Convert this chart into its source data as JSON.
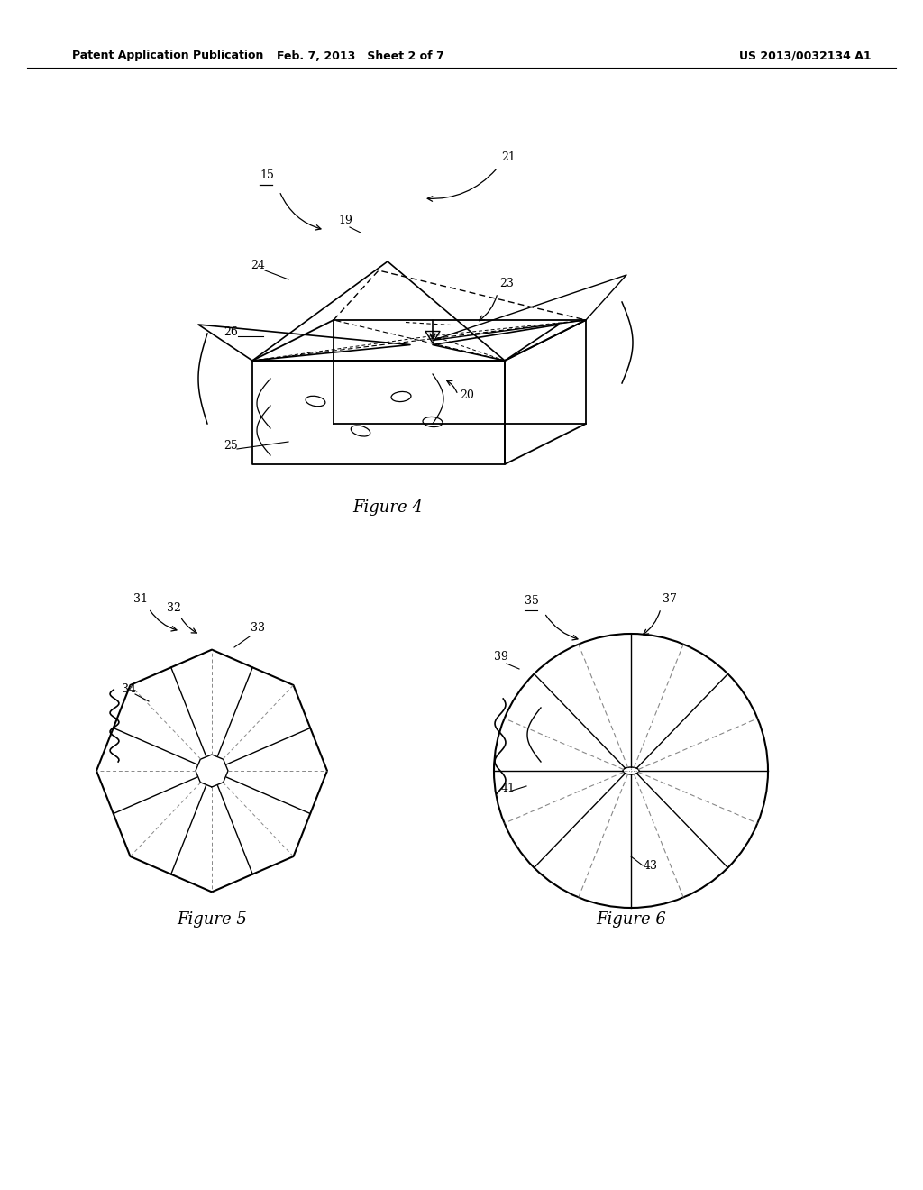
{
  "background_color": "#ffffff",
  "header_left": "Patent Application Publication",
  "header_center": "Feb. 7, 2013   Sheet 2 of 7",
  "header_right": "US 2013/0032134 A1",
  "fig4_caption": "Figure 4",
  "fig5_caption": "Figure 5",
  "fig6_caption": "Figure 6",
  "line_color": "#000000",
  "gray_color": "#888888"
}
